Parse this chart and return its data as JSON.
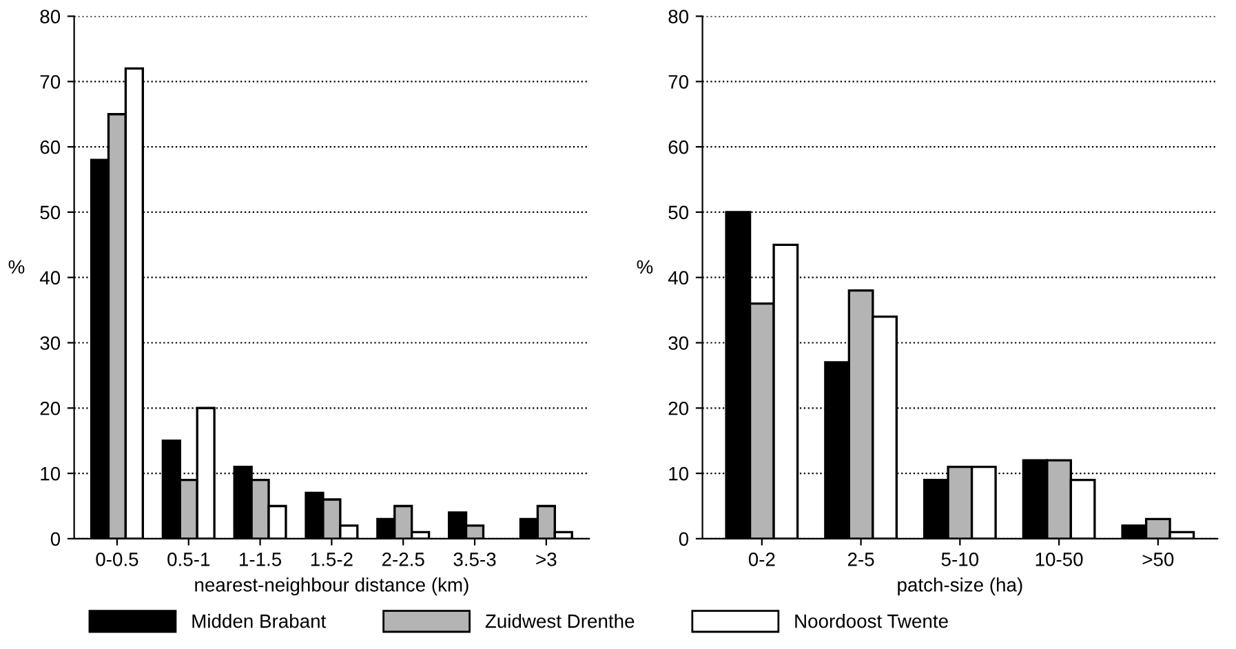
{
  "chart_data": [
    {
      "type": "bar",
      "xlabel": "nearest-neighbour distance (km)",
      "ylabel": "%",
      "categories": [
        "0-0.5",
        "0.5-1",
        "1-1.5",
        "1.5-2",
        "2-2.5",
        "3.5-3",
        ">3"
      ],
      "series": [
        {
          "name": "Midden Brabant",
          "color": "#000000",
          "values": [
            58,
            15,
            11,
            7,
            3,
            4,
            3
          ]
        },
        {
          "name": "Zuidwest Drenthe",
          "color": "#b4b4b4",
          "values": [
            65,
            9,
            9,
            6,
            5,
            2,
            5
          ]
        },
        {
          "name": "Noordoost Twente",
          "color": "#ffffff",
          "values": [
            72,
            20,
            5,
            2,
            1,
            null,
            1
          ]
        }
      ],
      "ylim": [
        0,
        80
      ],
      "yticks": [
        0,
        10,
        20,
        30,
        40,
        50,
        60,
        70,
        80
      ],
      "grid": "y",
      "line_style": "dotted",
      "legend": "bottom"
    },
    {
      "type": "bar",
      "xlabel": "patch-size (ha)",
      "ylabel": "%",
      "categories": [
        "0-2",
        "2-5",
        "5-10",
        "10-50",
        ">50"
      ],
      "series": [
        {
          "color": "#000000",
          "values": [
            50,
            27,
            9,
            12,
            2
          ]
        },
        {
          "color": "#b4b4b4",
          "values": [
            36,
            38,
            11,
            12,
            3
          ]
        },
        {
          "color": "#ffffff",
          "values": [
            45,
            34,
            11,
            9,
            1
          ]
        }
      ],
      "ylim": [
        0,
        80
      ],
      "yticks": [
        0,
        10,
        20,
        30,
        40,
        50,
        60,
        70,
        80
      ],
      "grid": "y",
      "line_style": "dotted"
    }
  ]
}
